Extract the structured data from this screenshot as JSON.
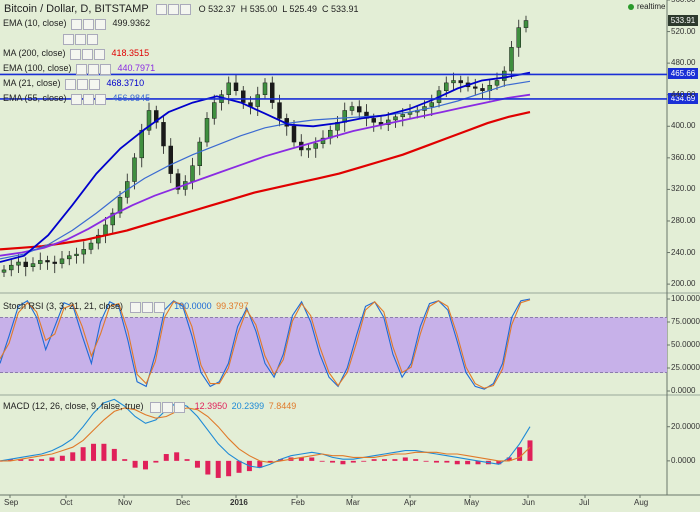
{
  "header": {
    "symbol": "Bitcoin / Dollar, D, BITSTAMP",
    "o_label": "O",
    "o_value": "532.37",
    "h_label": "H",
    "h_value": "535.00",
    "l_label": "L",
    "l_value": "525.49",
    "c_label": "C",
    "c_value": "533.91",
    "realtime": "realtime"
  },
  "legend": [
    {
      "name": "EMA (10, close)",
      "value": "499.9362",
      "color": "#222222"
    },
    {
      "name": "",
      "value": "",
      "color": "#888888"
    },
    {
      "name": "MA (200, close)",
      "value": "418.3515",
      "color": "#e00000"
    },
    {
      "name": "EMA (100, close)",
      "value": "440.7971",
      "color": "#8a2be2"
    },
    {
      "name": "MA (21, close)",
      "value": "468.3710",
      "color": "#0000cc"
    },
    {
      "name": "EMA (55, close)",
      "value": "456.9845",
      "color": "#3b6ad1"
    }
  ],
  "price_tags": {
    "last": {
      "value": "533.91",
      "color": "#2d3a2d"
    },
    "line_top": {
      "value": "465.66",
      "color": "#1a2fd6"
    },
    "line_bottom": {
      "value": "434.69",
      "color": "#1a2fd6"
    }
  },
  "stoch": {
    "label": "Stoch RSI (3, 3, 21, 21, close)",
    "k_value": "100.0000",
    "d_value": "99.3797",
    "k_color": "#1e6bd6",
    "d_color": "#e07a2a",
    "band_color": "#c7b1e9"
  },
  "macd": {
    "label": "MACD (12, 26, close, 9, false, true)",
    "hist_value": "12.3950",
    "macd_value": "20.2399",
    "signal_value": "7.8449",
    "hist_color": "#e0205a",
    "macd_color": "#1e8ad6",
    "signal_color": "#e07a2a"
  },
  "chart_data": [
    {
      "type": "candlestick",
      "title": "Bitcoin / Dollar, D, BITSTAMP",
      "ylim": [
        190,
        560
      ],
      "yticks": [
        "560.00",
        "520.00",
        "480.00",
        "440.00",
        "400.00",
        "360.00",
        "320.00",
        "280.00",
        "240.00",
        "200.00"
      ],
      "x_labels": [
        "Sep",
        "Oct",
        "Nov",
        "Dec",
        "2016",
        "Feb",
        "Mar",
        "Apr",
        "May",
        "Jun",
        "Jul",
        "Aug"
      ],
      "horizontal_lines": [
        465.66,
        434.69
      ],
      "close": [
        218,
        224,
        228,
        222,
        226,
        230,
        228,
        226,
        232,
        236,
        238,
        244,
        252,
        262,
        275,
        290,
        310,
        330,
        360,
        395,
        420,
        405,
        375,
        340,
        320,
        330,
        350,
        380,
        410,
        430,
        440,
        455,
        445,
        430,
        425,
        440,
        455,
        430,
        410,
        400,
        380,
        370,
        372,
        378,
        385,
        395,
        405,
        420,
        425,
        418,
        410,
        405,
        402,
        408,
        412,
        415,
        418,
        420,
        425,
        430,
        445,
        455,
        458,
        455,
        450,
        448,
        445,
        452,
        458,
        470,
        500,
        525,
        534
      ],
      "ma200": [
        244,
        246,
        248,
        252,
        256,
        262,
        268,
        276,
        284,
        292,
        300,
        308,
        316,
        322,
        328,
        334,
        340,
        348,
        356,
        364,
        374,
        384,
        394,
        404,
        412,
        418
      ],
      "ema100": [
        236,
        240,
        246,
        256,
        270,
        286,
        300,
        312,
        322,
        332,
        342,
        352,
        362,
        370,
        378,
        386,
        394,
        400,
        406,
        412,
        418,
        424,
        430,
        436,
        440
      ],
      "ema55": [
        232,
        238,
        250,
        268,
        290,
        314,
        334,
        350,
        364,
        376,
        388,
        398,
        404,
        408,
        410,
        412,
        414,
        418,
        424,
        432,
        442,
        452,
        457
      ],
      "ma21": [
        228,
        236,
        262,
        300,
        340,
        372,
        396,
        418,
        430,
        438,
        430,
        416,
        402,
        400,
        404,
        410,
        414,
        422,
        434,
        448,
        458,
        462,
        468
      ]
    },
    {
      "type": "line",
      "title": "Stoch RSI (3, 3, 21, 21, close)",
      "ylim": [
        0,
        100
      ],
      "yticks": [
        "100.0000",
        "75.0000",
        "50.0000",
        "25.0000",
        "0.0000"
      ],
      "bands": [
        20,
        80
      ],
      "series": [
        {
          "name": "K",
          "values": [
            30,
            60,
            92,
            98,
            80,
            45,
            70,
            96,
            92,
            60,
            30,
            75,
            97,
            92,
            55,
            10,
            5,
            40,
            88,
            98,
            92,
            60,
            20,
            5,
            10,
            30,
            70,
            90,
            65,
            30,
            15,
            40,
            82,
            97,
            75,
            40,
            15,
            5,
            25,
            60,
            92,
            97,
            80,
            40,
            15,
            30,
            70,
            95,
            98,
            88,
            55,
            20,
            5,
            2,
            8,
            30,
            80,
            98,
            100
          ]
        },
        {
          "name": "D",
          "values": [
            35,
            52,
            85,
            96,
            86,
            55,
            62,
            90,
            94,
            70,
            38,
            62,
            92,
            95,
            65,
            18,
            8,
            32,
            80,
            97,
            94,
            70,
            28,
            8,
            8,
            25,
            62,
            88,
            72,
            38,
            18,
            34,
            76,
            95,
            82,
            48,
            20,
            6,
            20,
            52,
            88,
            97,
            86,
            48,
            20,
            26,
            62,
            92,
            98,
            92,
            62,
            26,
            8,
            3,
            6,
            24,
            72,
            96,
            99
          ]
        }
      ]
    },
    {
      "type": "bar",
      "title": "MACD (12, 26, close, 9, false, true)",
      "yticks": [
        "20.0000",
        "0.0000"
      ],
      "ylim": [
        -20,
        38
      ],
      "series": [
        {
          "name": "MACD",
          "values": [
            0,
            1,
            2,
            3,
            4,
            6,
            9,
            13,
            20,
            28,
            34,
            36,
            32,
            26,
            22,
            24,
            30,
            34,
            32,
            26,
            18,
            10,
            4,
            0,
            -3,
            -4,
            -2,
            1,
            3,
            4,
            5,
            4,
            2,
            1,
            1,
            2,
            3,
            4,
            5,
            6,
            6,
            5,
            4,
            3,
            2,
            1,
            0,
            -1,
            -2,
            2,
            10,
            20
          ]
        },
        {
          "name": "Signal",
          "values": [
            0,
            0,
            1,
            2,
            3,
            4,
            6,
            8,
            12,
            18,
            24,
            29,
            31,
            30,
            27,
            25,
            26,
            29,
            31,
            30,
            26,
            20,
            13,
            7,
            3,
            0,
            -1,
            0,
            1,
            2,
            3,
            4,
            3,
            3,
            2,
            2,
            2,
            3,
            4,
            4,
            5,
            5,
            5,
            4,
            4,
            3,
            2,
            1,
            0,
            0,
            2,
            8
          ]
        },
        {
          "name": "Histogram",
          "values": [
            0,
            1,
            1,
            1,
            1,
            2,
            3,
            5,
            8,
            10,
            10,
            7,
            1,
            -4,
            -5,
            -1,
            4,
            5,
            1,
            -4,
            -8,
            -10,
            -9,
            -7,
            -6,
            -4,
            -1,
            1,
            2,
            2,
            2,
            0,
            -1,
            -2,
            -1,
            0,
            1,
            1,
            1,
            2,
            1,
            0,
            -1,
            -1,
            -2,
            -2,
            -2,
            -2,
            -2,
            2,
            8,
            12
          ]
        }
      ]
    }
  ]
}
